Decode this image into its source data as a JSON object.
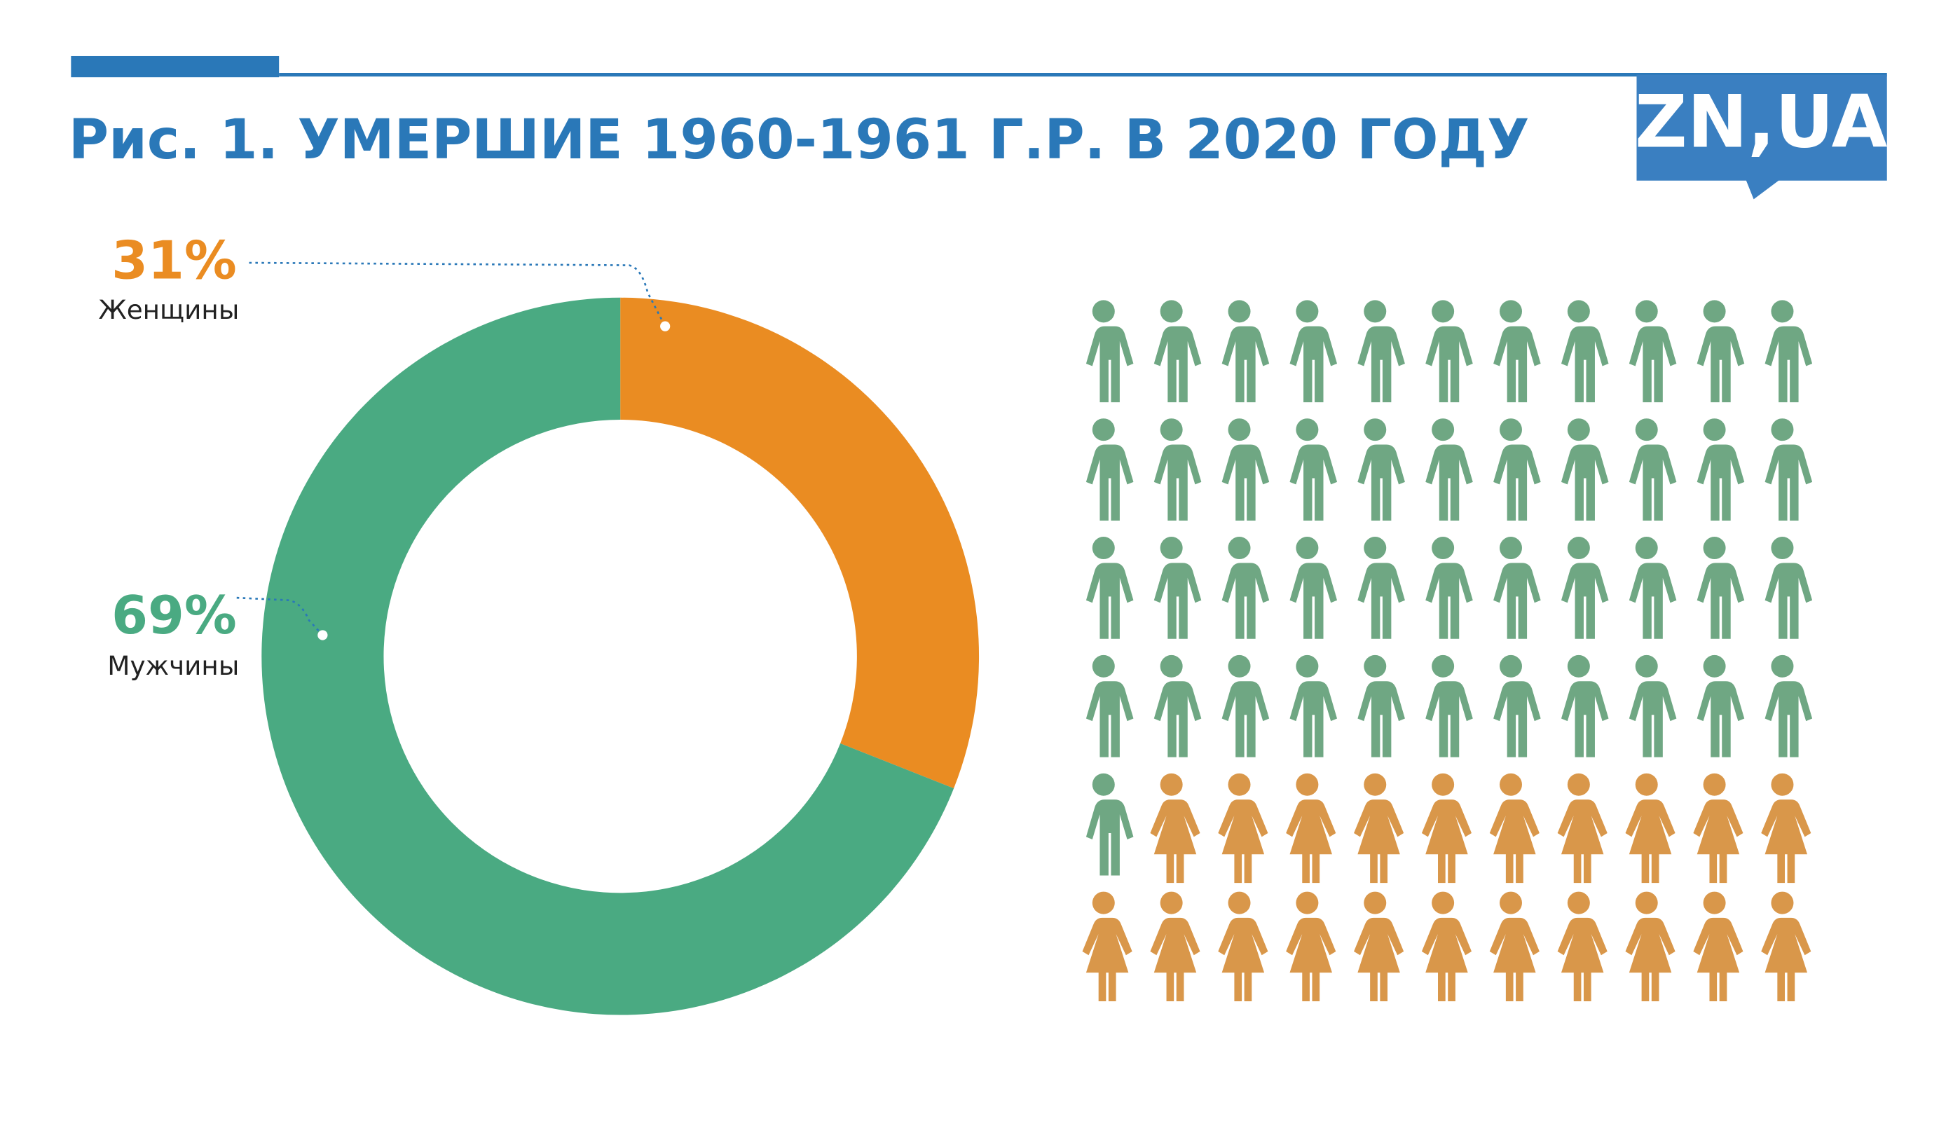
{
  "logo": "ZN,UA",
  "chart_data": [
    {
      "type": "donut",
      "title": "Рис. 1. УМЕРШИЕ 1960-1961 Г.Р. В 2020 ГОДУ",
      "categories": [
        "Женщины",
        "Мужчины"
      ],
      "values": [
        31,
        69
      ],
      "value_labels": [
        "31%",
        "69%"
      ],
      "colors": [
        "#ea8c22",
        "#4aaa82"
      ]
    },
    {
      "type": "pictogram",
      "values": [
        45,
        21
      ],
      "colors": [
        "#6fa783",
        "#d9974a"
      ]
    }
  ]
}
